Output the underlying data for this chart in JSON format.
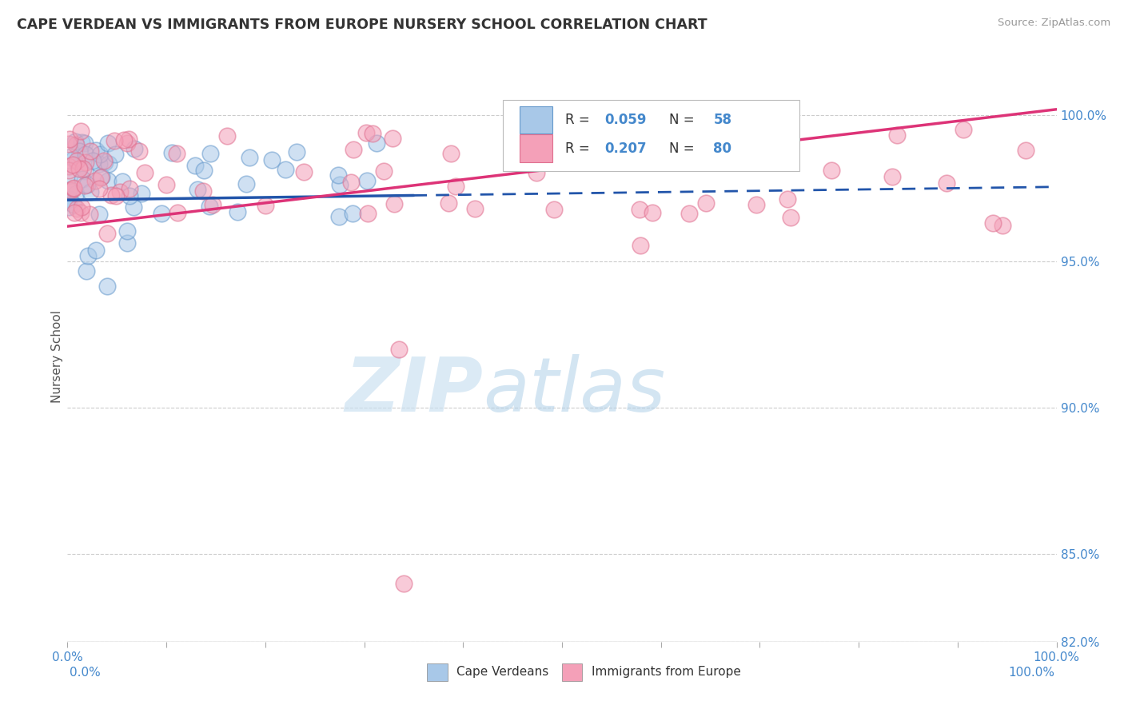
{
  "title": "CAPE VERDEAN VS IMMIGRANTS FROM EUROPE NURSERY SCHOOL CORRELATION CHART",
  "source": "Source: ZipAtlas.com",
  "ylabel": "Nursery School",
  "legend_blue_label": "Cape Verdeans",
  "legend_pink_label": "Immigrants from Europe",
  "r_blue_label": "R = ",
  "r_blue_val": "0.059",
  "n_blue_label": "N = ",
  "n_blue_val": "58",
  "r_pink_label": "R = ",
  "r_pink_val": "0.207",
  "n_pink_label": "N = ",
  "n_pink_val": "80",
  "blue_fill": "#a8c8e8",
  "blue_edge": "#6699cc",
  "pink_fill": "#f4a0b8",
  "pink_edge": "#e07090",
  "trend_blue_color": "#2255aa",
  "trend_pink_color": "#dd3377",
  "text_blue": "#4488cc",
  "label_color": "#555555",
  "watermark_color": "#d5e8f5",
  "grid_color": "#cccccc",
  "bg_color": "#ffffff",
  "ytick_labels": [
    "82.0%",
    "85.0%",
    "90.0%",
    "95.0%",
    "100.0%"
  ],
  "ytick_values": [
    82.0,
    85.0,
    90.0,
    95.0,
    100.0
  ],
  "xlim": [
    0,
    100
  ],
  "ylim": [
    82.0,
    101.5
  ],
  "blue_data_xlim": 35,
  "blue_trend_start_y": 97.1,
  "blue_trend_end_y": 97.55,
  "pink_trend_start_y": 96.2,
  "pink_trend_end_y": 100.2
}
